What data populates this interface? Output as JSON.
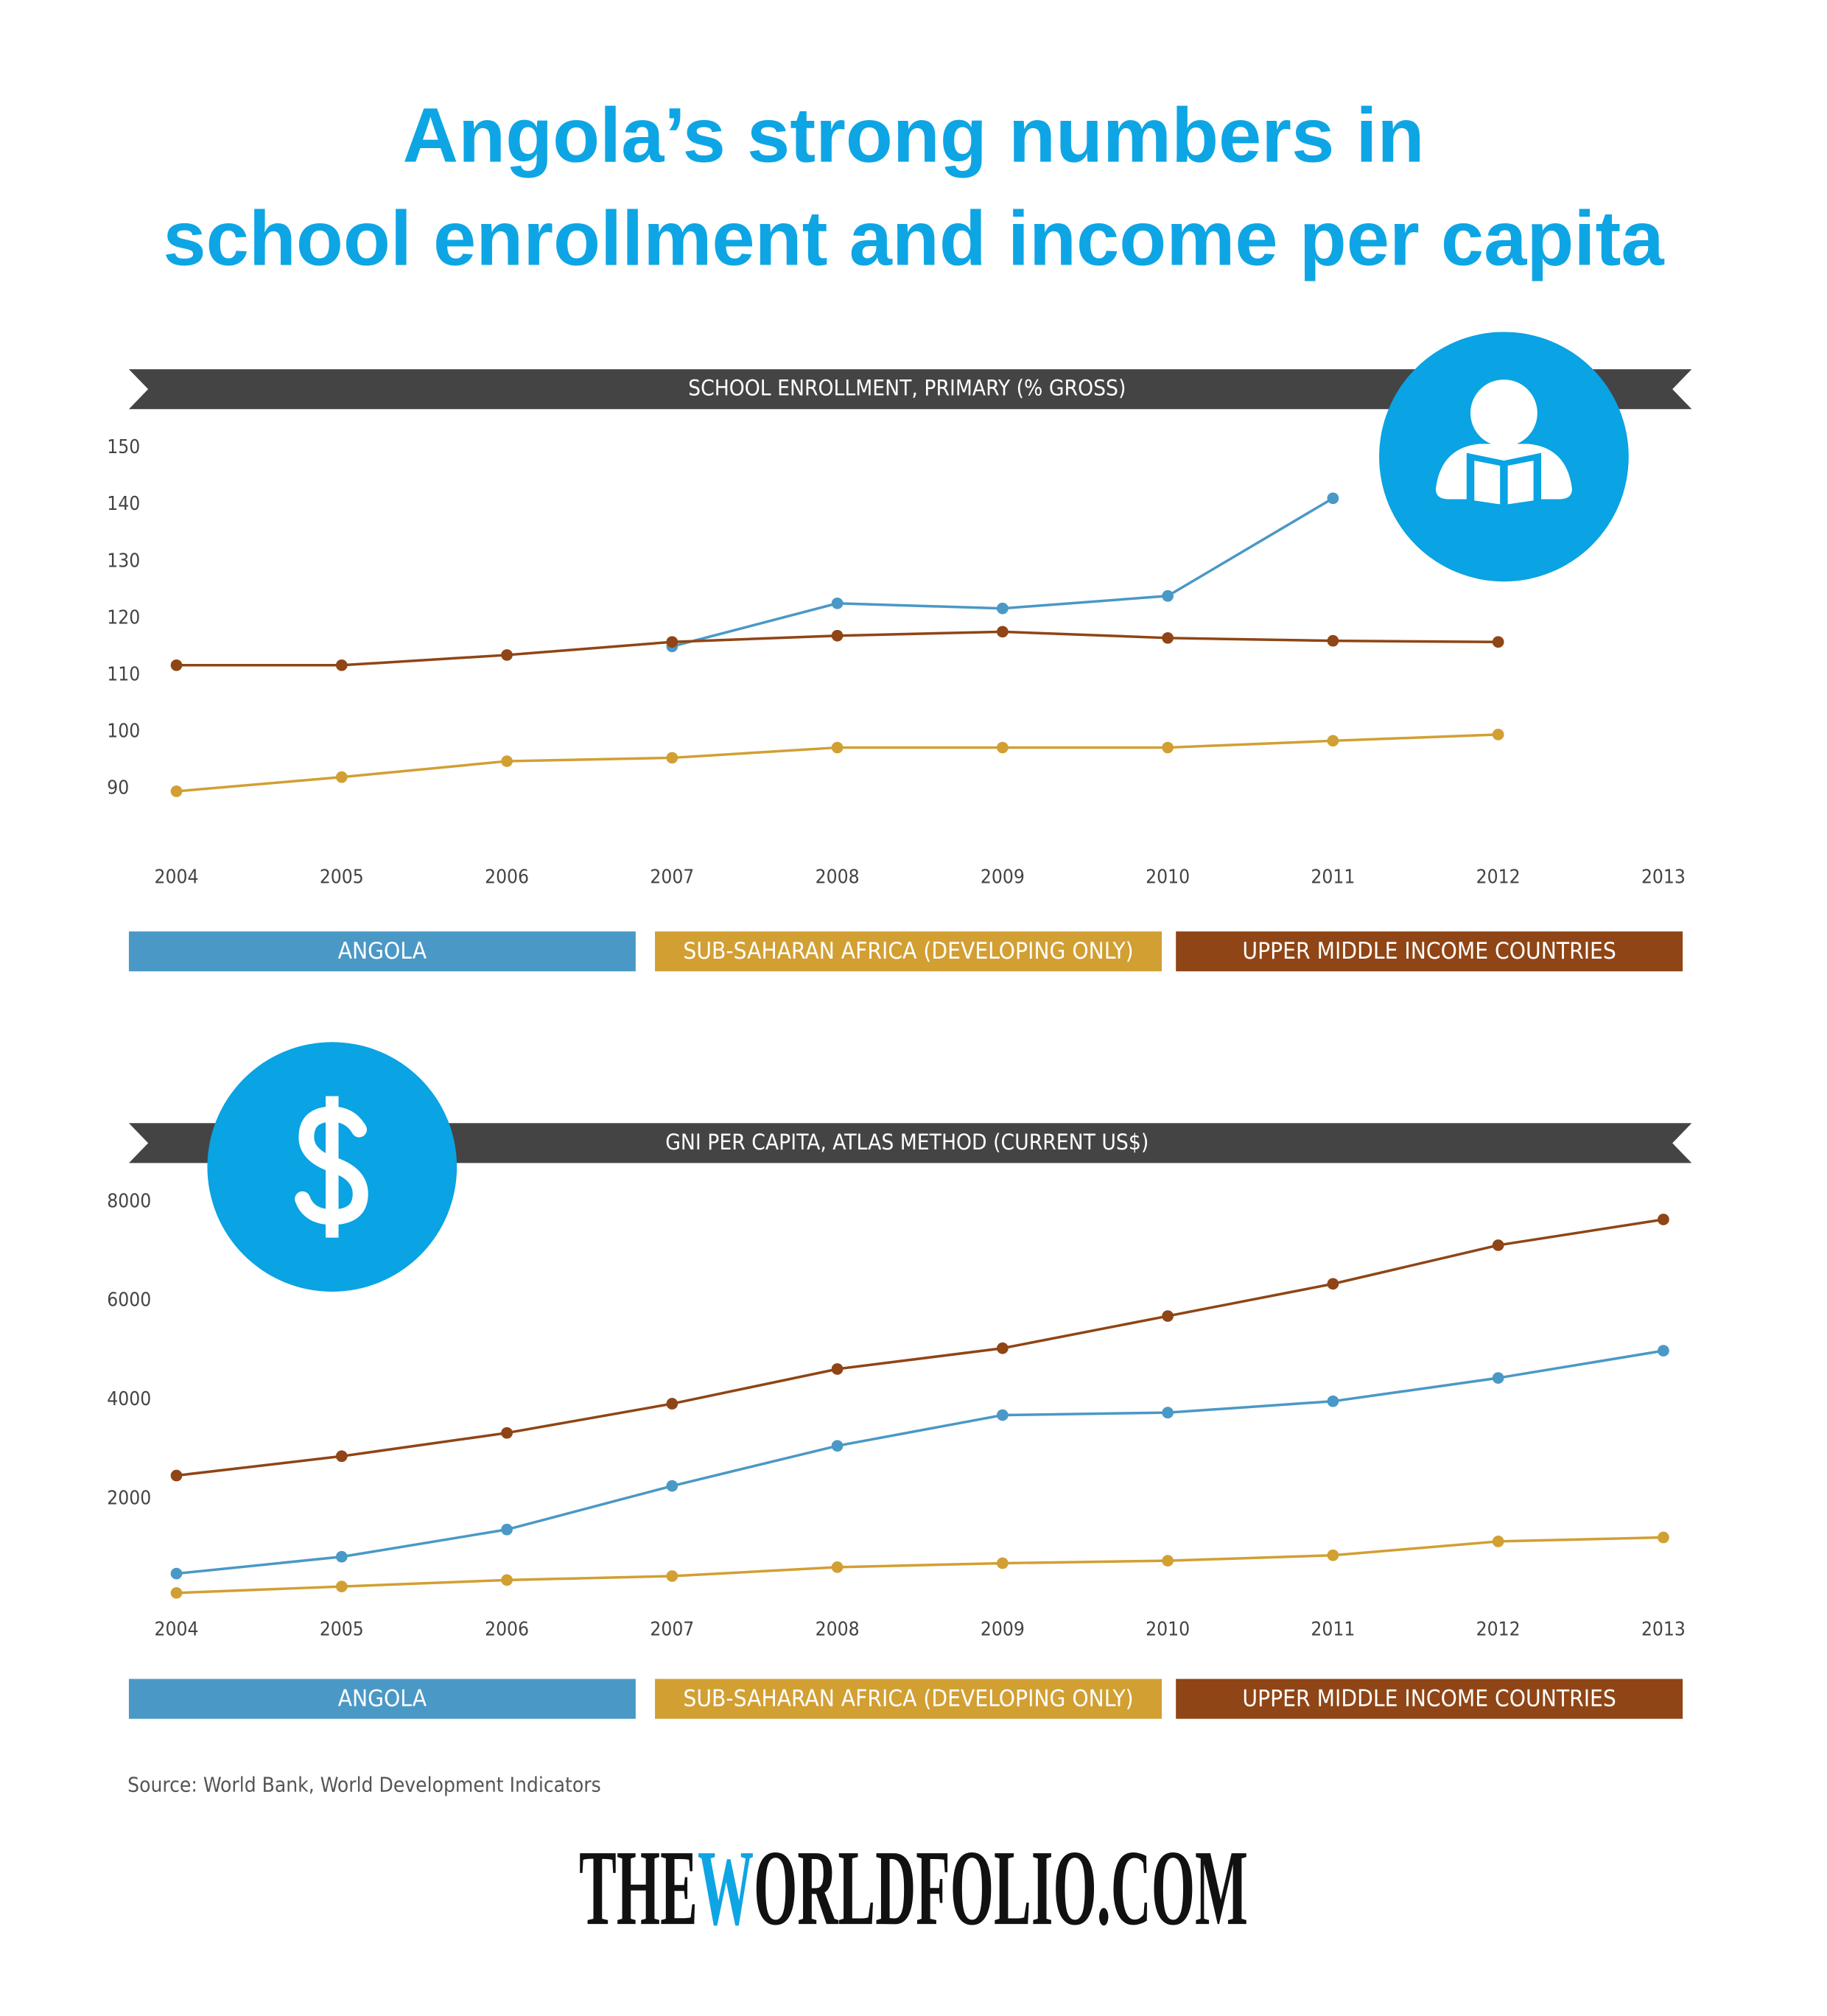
{
  "title": [
    "Angola’s strong numbers in",
    "school enrollment and income per capita"
  ],
  "source": "Source: World Bank, World Development Indicators",
  "brand": [
    "THE",
    "W",
    "ORLDFOLIO.COM"
  ],
  "chart_data": [
    {
      "type": "line",
      "title": "SCHOOL ENROLLMENT, PRIMARY (% GROSS)",
      "categories": [
        "2004",
        "2005",
        "2006",
        "2007",
        "2008",
        "2009",
        "2010",
        "2011",
        "2012",
        "2013"
      ],
      "ylim": [
        80,
        150
      ],
      "yticks": [
        90,
        100,
        110,
        120,
        130,
        140,
        150
      ],
      "series": [
        {
          "name": "ANGOLA",
          "color": "#4a98c6",
          "values": [
            null,
            null,
            null,
            115,
            122.6,
            121.7,
            123.9,
            141.1,
            null,
            null
          ]
        },
        {
          "name": "SUB-SAHARAN AFRICA (DEVELOPING ONLY)",
          "color": "#d29f33",
          "values": [
            89.5,
            92,
            94.8,
            95.4,
            97.2,
            97.2,
            97.2,
            98.4,
            99.5,
            null
          ]
        },
        {
          "name": "UPPER MIDDLE INCOME COUNTRIES",
          "color": "#8f4515",
          "values": [
            111.7,
            111.7,
            113.5,
            115.8,
            116.9,
            117.6,
            116.5,
            116,
            115.8,
            null
          ]
        }
      ]
    },
    {
      "type": "line",
      "title": "GNI PER CAPITA, ATLAS METHOD (CURRENT US$)",
      "categories": [
        "2004",
        "2005",
        "2006",
        "2007",
        "2008",
        "2009",
        "2010",
        "2011",
        "2012",
        "2013"
      ],
      "ylim": [
        0,
        8000
      ],
      "yticks": [
        2000,
        4000,
        6000,
        8000
      ],
      "series": [
        {
          "name": "ANGOLA",
          "color": "#4a98c6",
          "values": [
            490,
            830,
            1380,
            2260,
            3070,
            3690,
            3740,
            3970,
            4440,
            4990
          ]
        },
        {
          "name": "SUB-SAHARAN AFRICA (DEVELOPING ONLY)",
          "color": "#d29f33",
          "values": [
            100,
            230,
            360,
            440,
            620,
            700,
            750,
            860,
            1140,
            1220
          ]
        },
        {
          "name": "UPPER MIDDLE INCOME COUNTRIES",
          "color": "#8f4515",
          "values": [
            2470,
            2860,
            3330,
            3920,
            4620,
            5040,
            5690,
            6340,
            7120,
            7640
          ]
        }
      ]
    }
  ]
}
